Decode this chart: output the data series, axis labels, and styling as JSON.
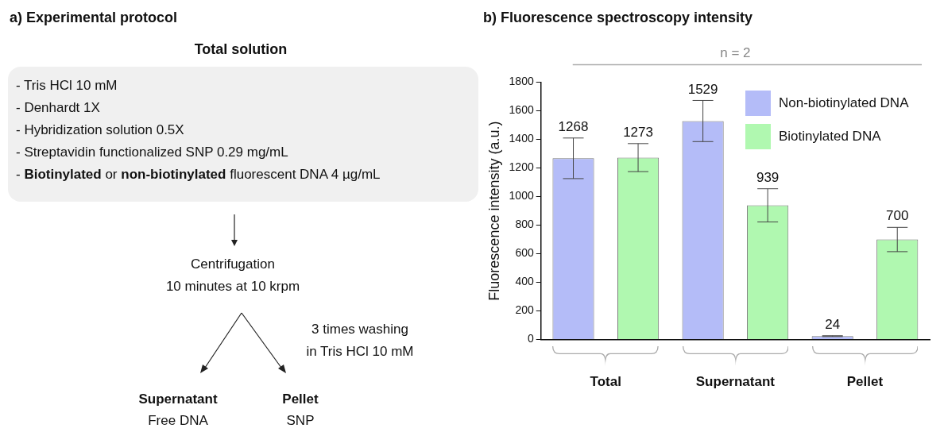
{
  "chart_data": [
    {
      "type": "other",
      "title": "a) Experimental protocol",
      "annotations": [
        "Total solution",
        "- Tris HCl 10 mM",
        "- Denhardt 1X",
        "- Hybridization solution 0.5X",
        "- Streptavidin functionalized SNP 0.29 mg/mL",
        "- ",
        "Biotinylated",
        " or ",
        "non-biotinylated",
        " fluorescent DNA 4 µg/mL",
        "Centrifugation",
        "10 minutes at 10 krpm",
        "3 times washing",
        "in Tris HCl 10 mM",
        "Supernatant",
        "Free DNA",
        "Pellet",
        "SNP"
      ]
    },
    {
      "type": "bar",
      "title": "b) Fluorescence spectroscopy intensity",
      "ylabel": "Fluorescence intensity (a.u.)",
      "categories": [
        "Total",
        "Supernatant",
        "Pellet"
      ],
      "series": [
        {
          "name": "Non-biotinylated DNA",
          "color": "#b4bcf8",
          "values": [
            1268,
            1529,
            24
          ],
          "errors": [
            142,
            144,
            3
          ]
        },
        {
          "name": "Biotinylated DNA",
          "color": "#b0f8b0",
          "values": [
            1273,
            939,
            700
          ],
          "errors": [
            98,
            116,
            85
          ]
        }
      ],
      "ylim": [
        0,
        1800
      ],
      "yticks": [
        0,
        200,
        400,
        600,
        800,
        1000,
        1200,
        1400,
        1600,
        1800
      ],
      "data_labels": true,
      "grid": false,
      "legend": "top right",
      "annotations": [
        "n = 2"
      ]
    }
  ]
}
